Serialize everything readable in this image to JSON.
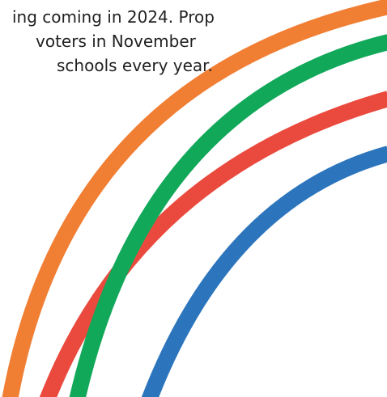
{
  "text": {
    "line1": "ing coming in 2024. Prop",
    "line2": "voters in November",
    "line3": "schools every year."
  },
  "colors": {
    "orange": "#f07f34",
    "green": "#12a85a",
    "red": "#ea4a3e",
    "blue": "#2c75bd",
    "text": "#222222"
  }
}
